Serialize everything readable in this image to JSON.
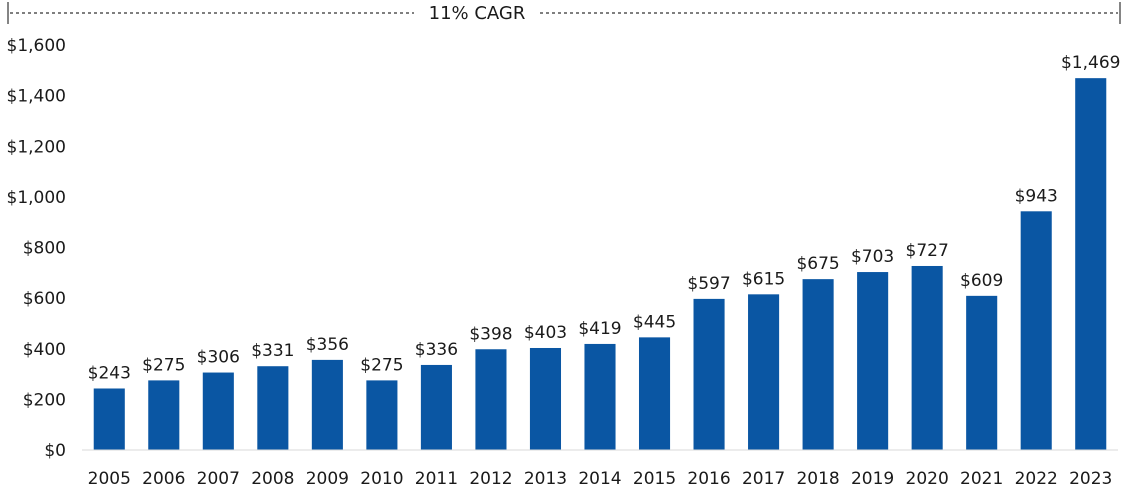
{
  "chart_data": {
    "type": "bar",
    "annotation": "11% CAGR",
    "categories": [
      "2005",
      "2006",
      "2007",
      "2008",
      "2009",
      "2010",
      "2011",
      "2012",
      "2013",
      "2014",
      "2015",
      "2016",
      "2017",
      "2018",
      "2019",
      "2020",
      "2021",
      "2022",
      "2023"
    ],
    "values": [
      243,
      275,
      306,
      331,
      356,
      275,
      336,
      398,
      403,
      419,
      445,
      597,
      615,
      675,
      703,
      727,
      609,
      943,
      1469
    ],
    "value_labels": [
      "$243",
      "$275",
      "$306",
      "$331",
      "$356",
      "$275",
      "$336",
      "$398",
      "$403",
      "$419",
      "$445",
      "$597",
      "$615",
      "$675",
      "$703",
      "$727",
      "$609",
      "$943",
      "$1,469"
    ],
    "yticks": [
      0,
      200,
      400,
      600,
      800,
      1000,
      1200,
      1400,
      1600
    ],
    "ytick_labels": [
      "$0",
      "$200",
      "$400",
      "$600",
      "$800",
      "$1,000",
      "$1,200",
      "$1,400",
      "$1,600"
    ],
    "ylim": [
      0,
      1600
    ],
    "grid": false,
    "legend": "none",
    "bar_color": "#0a56a3",
    "axis_color": "#d9d9d9",
    "bracket_color": "#333333"
  }
}
